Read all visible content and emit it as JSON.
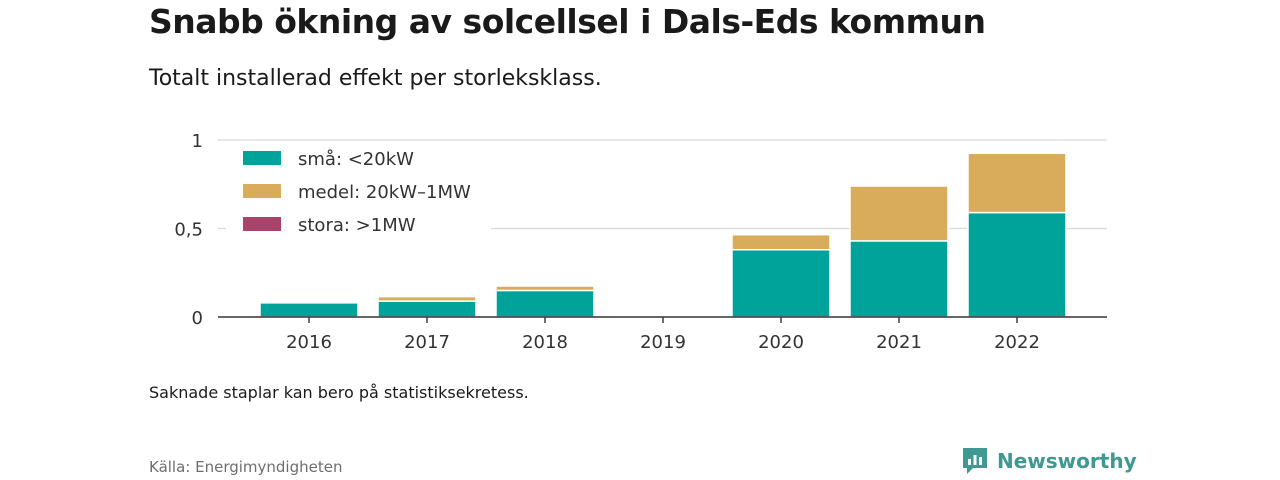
{
  "title": "Snabb ökning av solcellsel i Dals-Eds kommun",
  "subtitle": "Totalt installerad effekt per storleksklass.",
  "note": "Saknade staplar kan bero på statistiksekretess.",
  "source": "Källa: Energimyndigheten",
  "brand": {
    "name": "Newsworthy",
    "icon": "newsworthy-logo-icon",
    "color": "#3d9991"
  },
  "chart_data": {
    "type": "bar",
    "stacked": true,
    "categories": [
      "2016",
      "2017",
      "2018",
      "2019",
      "2020",
      "2021",
      "2022"
    ],
    "series": [
      {
        "name": "små: <20kW",
        "color": "#00a39a",
        "values": [
          0.08,
          0.09,
          0.15,
          0,
          0.38,
          0.43,
          0.59
        ]
      },
      {
        "name": "medel: 20kW–1MW",
        "color": "#d9ac5b",
        "values": [
          0,
          0.025,
          0.025,
          0,
          0.085,
          0.31,
          0.335
        ]
      },
      {
        "name": "stora: >1MW",
        "color": "#a8436b",
        "values": [
          0,
          0,
          0,
          0,
          0,
          0,
          0
        ]
      }
    ],
    "y_ticks": [
      {
        "value": 0,
        "label": "0"
      },
      {
        "value": 0.5,
        "label": "0,5"
      },
      {
        "value": 1,
        "label": "1"
      }
    ],
    "ylim": [
      0,
      1
    ],
    "grid": true,
    "legend_position": "top-left"
  }
}
